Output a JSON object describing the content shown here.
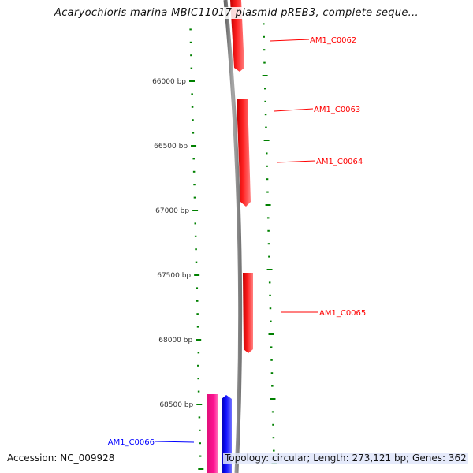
{
  "title": "Acaryochloris marina MBIC11017 plasmid pREB3, complete seque...",
  "accession": "Accession: NC_009928",
  "summary": "Topology: circular; Length: 273,121 bp; Genes: 362",
  "ruler": {
    "labels": [
      "66000 bp",
      "66500 bp",
      "67000 bp",
      "67500 bp",
      "68000 bp",
      "68500 bp"
    ],
    "tick_color": "#008000"
  },
  "genes": [
    {
      "label": "AM1_C0062",
      "color": "#ff0000",
      "strand": "reverse"
    },
    {
      "label": "AM1_C0063",
      "color": "#ff0000",
      "strand": "reverse"
    },
    {
      "label": "AM1_C0064",
      "color": "#ff0000",
      "strand": "reverse"
    },
    {
      "label": "AM1_C0065",
      "color": "#ff0000",
      "strand": "reverse"
    },
    {
      "label": "AM1_C0066",
      "color": "#0000ff",
      "strand": "forward"
    },
    {
      "label": "",
      "color": "#ff1493",
      "strand": "none"
    }
  ],
  "backbone_color": "#888888"
}
